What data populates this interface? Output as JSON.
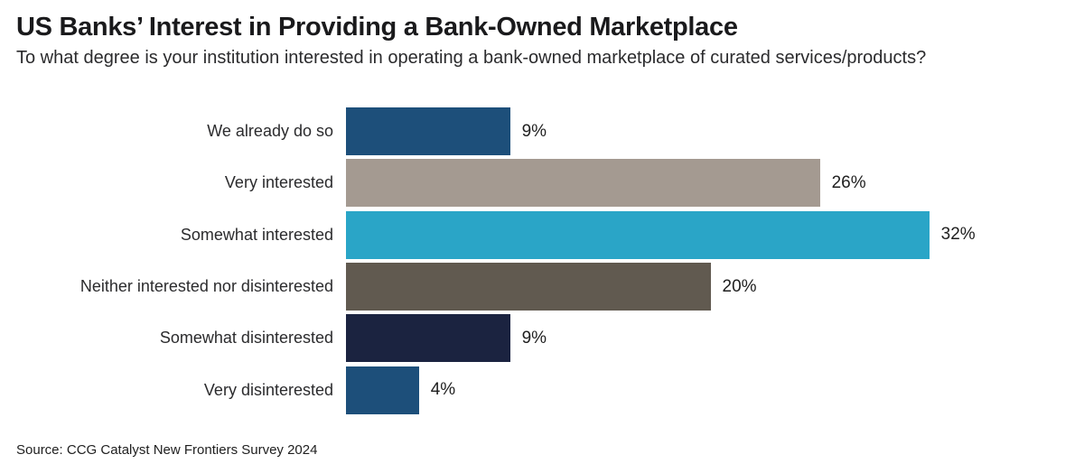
{
  "header": {
    "title": "US Banks’ Interest in Providing a Bank-Owned Marketplace",
    "subtitle": "To what degree is your institution interested in operating a bank-owned marketplace of curated services/products?"
  },
  "footer": {
    "source": "Source: CCG Catalyst New Frontiers Survey 2024"
  },
  "chart_data": {
    "type": "bar",
    "orientation": "horizontal",
    "title": "US Banks’ Interest in Providing a Bank-Owned Marketplace",
    "subtitle": "To what degree is your institution interested in operating a bank-owned marketplace of curated services/products?",
    "categories": [
      "We already do so",
      "Very interested",
      "Somewhat interested",
      "Neither interested nor disinterested",
      "Somewhat disinterested",
      "Very disinterested"
    ],
    "values": [
      9,
      26,
      32,
      20,
      9,
      4
    ],
    "value_labels": [
      "9%",
      "26%",
      "32%",
      "20%",
      "9%",
      "4%"
    ],
    "bar_colors": [
      "#1d4f7a",
      "#a49a91",
      "#2aa5c7",
      "#615a50",
      "#1b2340",
      "#1d4f7a"
    ],
    "xlabel": "",
    "ylabel": "",
    "xlim": [
      0,
      39.5
    ],
    "grid": false,
    "legend": "none",
    "source": "Source: CCG Catalyst New Frontiers Survey 2024"
  }
}
